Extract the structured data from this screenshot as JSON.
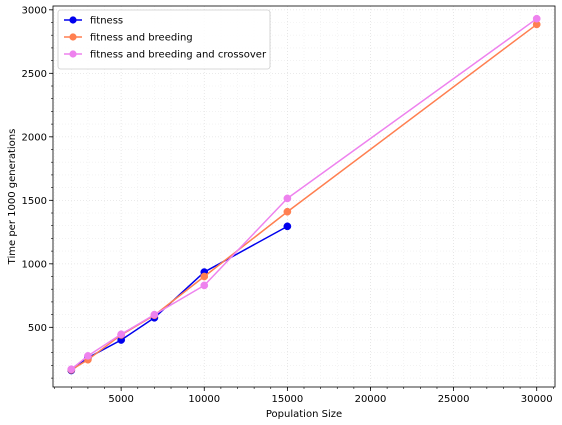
{
  "chart_data": {
    "type": "line",
    "title": "",
    "xlabel": "Population Size",
    "ylabel": "Time per 1000 generations",
    "xlim": [
      900,
      31100
    ],
    "ylim": [
      30,
      3030
    ],
    "xticks": [
      5000,
      10000,
      15000,
      20000,
      25000,
      30000
    ],
    "yticks": [
      500,
      1000,
      1500,
      2000,
      2500,
      3000
    ],
    "grid": true,
    "legend_position": "top-left",
    "series": [
      {
        "name": "fitness",
        "color": "#0000ee",
        "points": [
          [
            2000,
            160
          ],
          [
            3000,
            260
          ],
          [
            5000,
            400
          ],
          [
            7000,
            575
          ],
          [
            10000,
            935
          ],
          [
            15000,
            1295
          ]
        ]
      },
      {
        "name": "fitness and breeding",
        "color": "#ff7f50",
        "points": [
          [
            2000,
            165
          ],
          [
            3000,
            245
          ],
          [
            5000,
            440
          ],
          [
            7000,
            595
          ],
          [
            10000,
            900
          ],
          [
            15000,
            1410
          ],
          [
            30000,
            2885
          ]
        ]
      },
      {
        "name": "fitness and breeding and crossover",
        "color": "#ee82ee",
        "points": [
          [
            2000,
            170
          ],
          [
            3000,
            275
          ],
          [
            5000,
            445
          ],
          [
            7000,
            600
          ],
          [
            10000,
            830
          ],
          [
            15000,
            1515
          ],
          [
            30000,
            2930
          ]
        ]
      }
    ]
  }
}
